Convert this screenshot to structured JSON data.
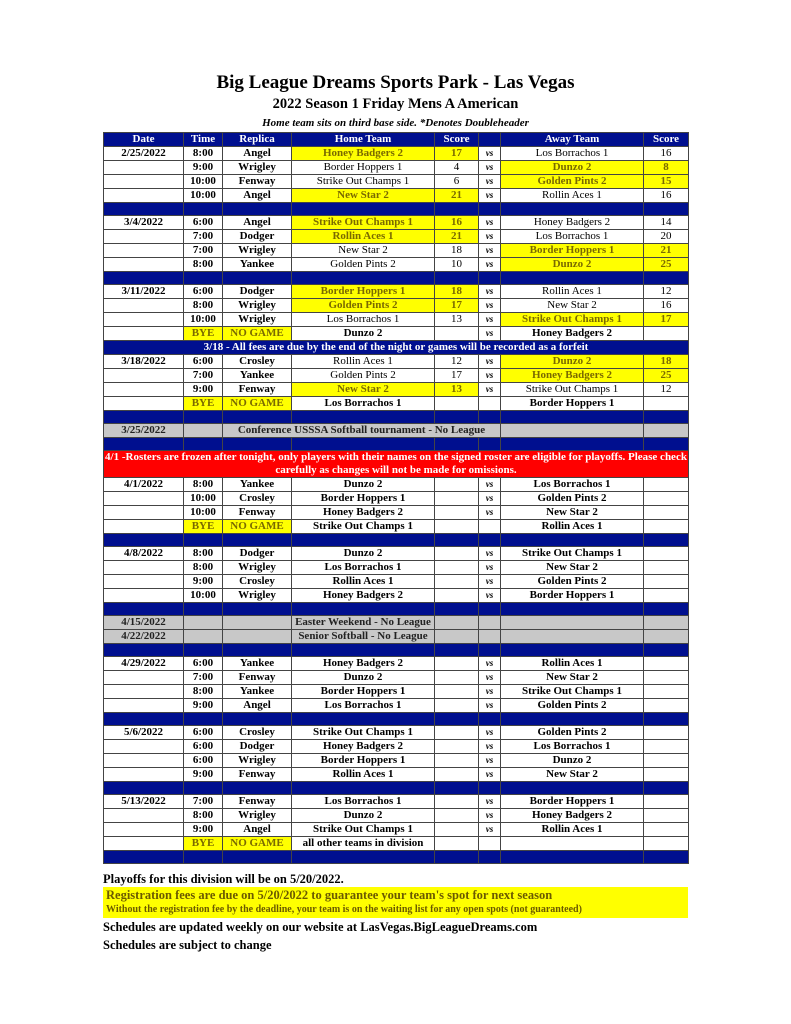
{
  "header": {
    "title": "Big League Dreams Sports Park - Las Vegas",
    "subtitle": "2022 Season 1 Friday Mens A American",
    "note": "Home team sits on third base side.  *Denotes Doubleheader"
  },
  "colors": {
    "header_blue": "#000f8f",
    "winner_yellow": "#ffff00",
    "notice_red": "#ff0000",
    "off_gray": "#c8c8c8"
  },
  "columns": [
    "Date",
    "Time",
    "Replica",
    "Home Team",
    "Score",
    "",
    "Away Team",
    "Score"
  ],
  "rows": [
    {
      "type": "game",
      "date": "2/25/2022",
      "time": "8:00",
      "field": "Angel",
      "home": "Honey Badgers 2",
      "hs": "17",
      "away": "Los Borrachos 1",
      "as": "16",
      "win": "home"
    },
    {
      "type": "game",
      "date": "",
      "time": "9:00",
      "field": "Wrigley",
      "home": "Border Hoppers 1",
      "hs": "4",
      "away": "Dunzo 2",
      "as": "8",
      "win": "away"
    },
    {
      "type": "game",
      "date": "",
      "time": "10:00",
      "field": "Fenway",
      "home": "Strike Out Champs 1",
      "hs": "6",
      "away": "Golden Pints 2",
      "as": "15",
      "win": "away"
    },
    {
      "type": "game",
      "date": "",
      "time": "10:00",
      "field": "Angel",
      "home": "New Star 2",
      "hs": "21",
      "away": "Rollin Aces 1",
      "as": "16",
      "win": "home"
    },
    {
      "type": "sep"
    },
    {
      "type": "game",
      "date": "3/4/2022",
      "time": "6:00",
      "field": "Angel",
      "home": "Strike Out Champs 1",
      "hs": "16",
      "away": "Honey Badgers 2",
      "as": "14",
      "win": "home"
    },
    {
      "type": "game",
      "date": "",
      "time": "7:00",
      "field": "Dodger",
      "home": "Rollin Aces 1",
      "hs": "21",
      "away": "Los Borrachos 1",
      "as": "20",
      "win": "home"
    },
    {
      "type": "game",
      "date": "",
      "time": "7:00",
      "field": "Wrigley",
      "home": "New Star 2",
      "hs": "18",
      "away": "Border Hoppers 1",
      "as": "21",
      "win": "away"
    },
    {
      "type": "game",
      "date": "",
      "time": "8:00",
      "field": "Yankee",
      "home": "Golden Pints 2",
      "hs": "10",
      "away": "Dunzo 2",
      "as": "25",
      "win": "away"
    },
    {
      "type": "sep"
    },
    {
      "type": "game",
      "date": "3/11/2022",
      "time": "6:00",
      "field": "Dodger",
      "home": "Border Hoppers 1",
      "hs": "18",
      "away": "Rollin Aces 1",
      "as": "12",
      "win": "home"
    },
    {
      "type": "game",
      "date": "",
      "time": "8:00",
      "field": "Wrigley",
      "home": "Golden Pints 2",
      "hs": "17",
      "away": "New Star 2",
      "as": "16",
      "win": "home"
    },
    {
      "type": "game",
      "date": "",
      "time": "10:00",
      "field": "Wrigley",
      "home": "Los Borrachos 1",
      "hs": "13",
      "away": "Strike Out Champs 1",
      "as": "17",
      "win": "away"
    },
    {
      "type": "bye",
      "date": "",
      "time": "BYE",
      "field": "NO GAME",
      "home": "Dunzo 2",
      "vs": "vs",
      "away": "Honey Badgers 2"
    },
    {
      "type": "notice",
      "text": "3/18 - All fees are due by the end of the night or games will be recorded as a forfeit"
    },
    {
      "type": "game",
      "date": "3/18/2022",
      "time": "6:00",
      "field": "Crosley",
      "home": "Rollin Aces 1",
      "hs": "12",
      "away": "Dunzo 2",
      "as": "18",
      "win": "away"
    },
    {
      "type": "game",
      "date": "",
      "time": "7:00",
      "field": "Yankee",
      "home": "Golden Pints 2",
      "hs": "17",
      "away": "Honey Badgers 2",
      "as": "25",
      "win": "away"
    },
    {
      "type": "game",
      "date": "",
      "time": "9:00",
      "field": "Fenway",
      "home": "New Star 2",
      "hs": "13",
      "away": "Strike Out Champs 1",
      "as": "12",
      "win": "home"
    },
    {
      "type": "bye",
      "date": "",
      "time": "BYE",
      "field": "NO GAME",
      "home": "Los Borrachos 1",
      "vs": "",
      "away": "Border Hoppers 1"
    },
    {
      "type": "sep"
    },
    {
      "type": "offwide",
      "date": "3/25/2022",
      "text": "Conference USSSA Softball tournament - No League"
    },
    {
      "type": "sep"
    },
    {
      "type": "red",
      "text": "4/1 -Rosters are frozen after tonight, only players with their names on the signed roster are eligible for playoffs. Please check carefully as changes will not be made for omissions."
    },
    {
      "type": "game",
      "date": "4/1/2022",
      "time": "8:00",
      "field": "Yankee",
      "home": "Dunzo 2",
      "hs": "",
      "away": "Los Borrachos 1",
      "as": "",
      "win": null
    },
    {
      "type": "game",
      "date": "",
      "time": "10:00",
      "field": "Crosley",
      "home": "Border Hoppers 1",
      "hs": "",
      "away": "Golden Pints 2",
      "as": "",
      "win": null
    },
    {
      "type": "game",
      "date": "",
      "time": "10:00",
      "field": "Fenway",
      "home": "Honey Badgers 2",
      "hs": "",
      "away": "New Star 2",
      "as": "",
      "win": null
    },
    {
      "type": "bye",
      "date": "",
      "time": "BYE",
      "field": "NO GAME",
      "home": "Strike Out Champs 1",
      "vs": "",
      "away": "Rollin Aces 1"
    },
    {
      "type": "sep"
    },
    {
      "type": "game",
      "date": "4/8/2022",
      "time": "8:00",
      "field": "Dodger",
      "home": "Dunzo 2",
      "hs": "",
      "away": "Strike Out Champs 1",
      "as": "",
      "win": null
    },
    {
      "type": "game",
      "date": "",
      "time": "8:00",
      "field": "Wrigley",
      "home": "Los Borrachos 1",
      "hs": "",
      "away": "New Star 2",
      "as": "",
      "win": null
    },
    {
      "type": "game",
      "date": "",
      "time": "9:00",
      "field": "Crosley",
      "home": "Rollin Aces 1",
      "hs": "",
      "away": "Golden Pints 2",
      "as": "",
      "win": null
    },
    {
      "type": "game",
      "date": "",
      "time": "10:00",
      "field": "Wrigley",
      "home": "Honey Badgers 2",
      "hs": "",
      "away": "Border Hoppers 1",
      "as": "",
      "win": null
    },
    {
      "type": "sep"
    },
    {
      "type": "off",
      "date": "4/15/2022",
      "text": "Easter Weekend - No League"
    },
    {
      "type": "off",
      "date": "4/22/2022",
      "text": "Senior Softball - No League"
    },
    {
      "type": "sep"
    },
    {
      "type": "game",
      "date": "4/29/2022",
      "time": "6:00",
      "field": "Yankee",
      "home": "Honey Badgers 2",
      "hs": "",
      "away": "Rollin Aces 1",
      "as": "",
      "win": null
    },
    {
      "type": "game",
      "date": "",
      "time": "7:00",
      "field": "Fenway",
      "home": "Dunzo 2",
      "hs": "",
      "away": "New Star 2",
      "as": "",
      "win": null
    },
    {
      "type": "game",
      "date": "",
      "time": "8:00",
      "field": "Yankee",
      "home": "Border Hoppers 1",
      "hs": "",
      "away": "Strike Out Champs 1",
      "as": "",
      "win": null
    },
    {
      "type": "game",
      "date": "",
      "time": "9:00",
      "field": "Angel",
      "home": "Los Borrachos 1",
      "hs": "",
      "away": "Golden Pints 2",
      "as": "",
      "win": null
    },
    {
      "type": "sep"
    },
    {
      "type": "game",
      "date": "5/6/2022",
      "time": "6:00",
      "field": "Crosley",
      "home": "Strike Out Champs 1",
      "hs": "",
      "away": "Golden Pints 2",
      "as": "",
      "win": null
    },
    {
      "type": "game",
      "date": "",
      "time": "6:00",
      "field": "Dodger",
      "home": "Honey Badgers 2",
      "hs": "",
      "away": "Los Borrachos 1",
      "as": "",
      "win": null
    },
    {
      "type": "game",
      "date": "",
      "time": "6:00",
      "field": "Wrigley",
      "home": "Border Hoppers 1",
      "hs": "",
      "away": "Dunzo 2",
      "as": "",
      "win": null
    },
    {
      "type": "game",
      "date": "",
      "time": "9:00",
      "field": "Fenway",
      "home": "Rollin Aces 1",
      "hs": "",
      "away": "New Star 2",
      "as": "",
      "win": null
    },
    {
      "type": "sep"
    },
    {
      "type": "game",
      "date": "5/13/2022",
      "time": "7:00",
      "field": "Fenway",
      "home": "Los Borrachos 1",
      "hs": "",
      "away": "Border Hoppers 1",
      "as": "",
      "win": null
    },
    {
      "type": "game",
      "date": "",
      "time": "8:00",
      "field": "Wrigley",
      "home": "Dunzo 2",
      "hs": "",
      "away": "Honey Badgers 2",
      "as": "",
      "win": null
    },
    {
      "type": "game",
      "date": "",
      "time": "9:00",
      "field": "Angel",
      "home": "Strike Out Champs 1",
      "hs": "",
      "away": "Rollin Aces 1",
      "as": "",
      "win": null
    },
    {
      "type": "bye",
      "date": "",
      "time": "BYE",
      "field": "NO GAME",
      "home": "all other teams in division",
      "vs": "",
      "away": ""
    },
    {
      "type": "sep"
    }
  ],
  "vs_label": "vs",
  "footer": {
    "playoffs": "Playoffs for this division will be on 5/20/2022.",
    "registration": "Registration fees are due on 5/20/2022 to guarantee your team's spot for next season",
    "registration_note": "Without the registration fee by the deadline, your team is on the waiting list for any open spots (not guaranteed)",
    "website": "Schedules are updated weekly on our website at LasVegas.BigLeagueDreams.com",
    "change": "Schedules are subject to change"
  }
}
